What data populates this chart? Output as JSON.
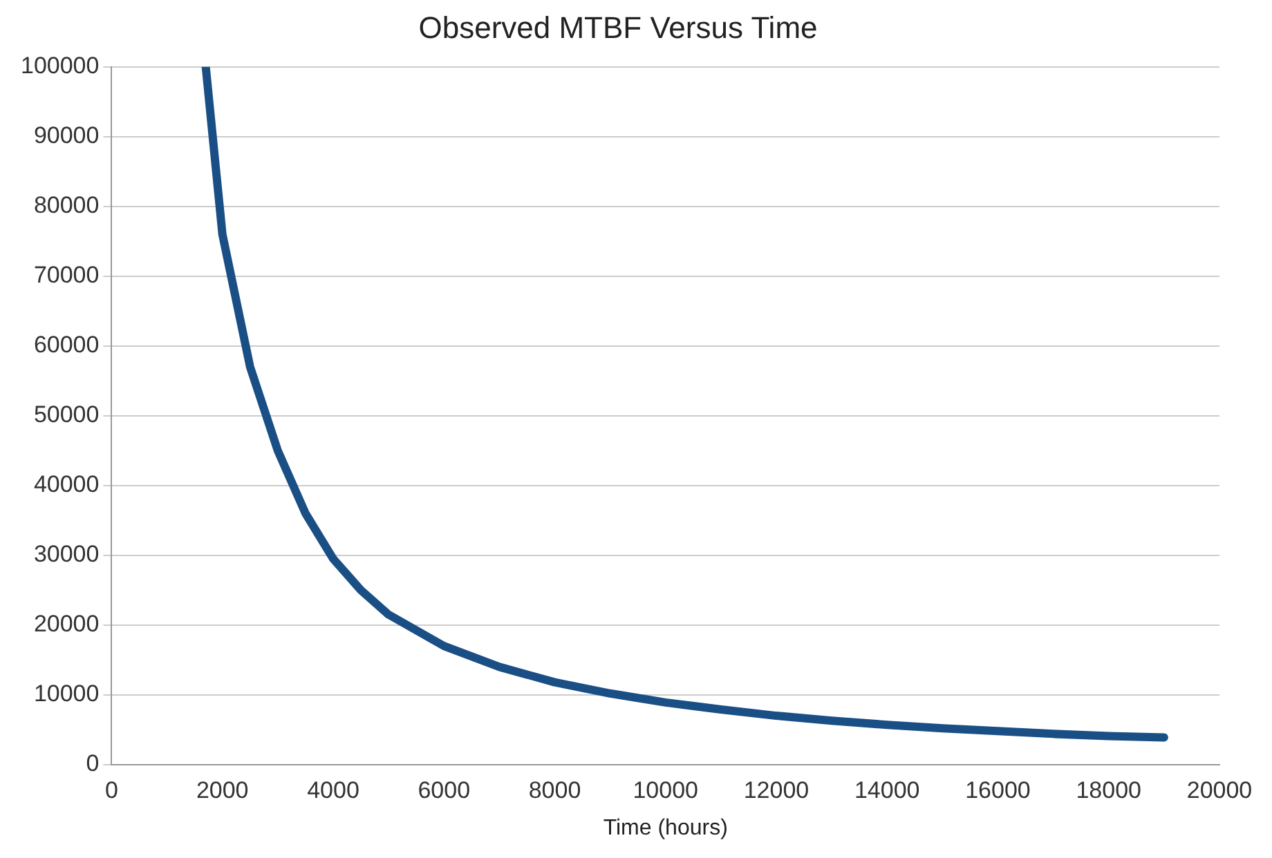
{
  "chart_data": {
    "type": "line",
    "title": "Observed MTBF Versus Time",
    "xlabel": "Time (hours)",
    "x": [
      1700,
      2000,
      2500,
      3000,
      3500,
      4000,
      4500,
      5000,
      6000,
      7000,
      8000,
      9000,
      10000,
      11000,
      12000,
      13000,
      14000,
      15000,
      16000,
      17000,
      18000,
      19000
    ],
    "series": [
      {
        "color": "#1a4f85",
        "values": [
          100000,
          76000,
          57000,
          45000,
          36000,
          29500,
          25000,
          21500,
          17000,
          14000,
          11800,
          10200,
          8900,
          7900,
          7000,
          6300,
          5700,
          5200,
          4800,
          4400,
          4100,
          3900
        ]
      }
    ],
    "xlim": [
      0,
      20000
    ],
    "xticks": [
      0,
      2000,
      4000,
      6000,
      8000,
      10000,
      12000,
      14000,
      16000,
      18000,
      20000
    ],
    "ylim": [
      0,
      100000
    ],
    "yticks": [
      0,
      10000,
      20000,
      30000,
      40000,
      50000,
      60000,
      70000,
      80000,
      90000,
      100000
    ],
    "grid": "y",
    "marker": "none",
    "line_style": "solid"
  }
}
